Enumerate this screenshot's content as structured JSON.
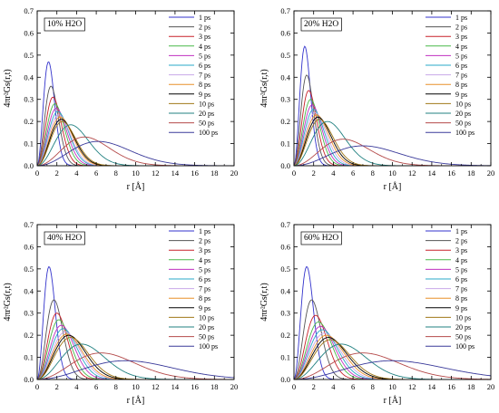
{
  "figure": {
    "series_labels": [
      "1 ps",
      "2 ps",
      "3 ps",
      "4 ps",
      "5 ps",
      "6 ps",
      "7 ps",
      "8 ps",
      "9 ps",
      "10 ps",
      "20 ps",
      "50 ps",
      "100 ps"
    ],
    "series_colors": [
      "#3333cc",
      "#555555",
      "#c8202a",
      "#48b848",
      "#c030c0",
      "#2aa8c8",
      "#c8a8e8",
      "#e89028",
      "#000000",
      "#a07818",
      "#208080",
      "#b44a4a",
      "#3a3a9a"
    ]
  },
  "chart_data": [
    {
      "type": "line",
      "panel_label": "10% H2O",
      "ylabel": "4πr²Gs(r,t)",
      "xlabel": "r [Å]",
      "xlim": [
        0,
        20
      ],
      "ylim": [
        0,
        0.7
      ],
      "x_ticks": [
        0,
        2,
        4,
        6,
        8,
        10,
        12,
        14,
        16,
        18,
        20
      ],
      "y_ticks": [
        0.0,
        0.1,
        0.2,
        0.3,
        0.4,
        0.5,
        0.6,
        0.7
      ],
      "legend_position": "top-right",
      "series": [
        {
          "name": "1 ps",
          "peak_r": 1.15,
          "peak_value": 0.47
        },
        {
          "name": "2 ps",
          "peak_r": 1.4,
          "peak_value": 0.36
        },
        {
          "name": "3 ps",
          "peak_r": 1.6,
          "peak_value": 0.31
        },
        {
          "name": "4 ps",
          "peak_r": 1.8,
          "peak_value": 0.28
        },
        {
          "name": "5 ps",
          "peak_r": 1.95,
          "peak_value": 0.26
        },
        {
          "name": "6 ps",
          "peak_r": 2.1,
          "peak_value": 0.245
        },
        {
          "name": "7 ps",
          "peak_r": 2.2,
          "peak_value": 0.23
        },
        {
          "name": "8 ps",
          "peak_r": 2.35,
          "peak_value": 0.22
        },
        {
          "name": "9 ps",
          "peak_r": 2.45,
          "peak_value": 0.21
        },
        {
          "name": "10 ps",
          "peak_r": 2.55,
          "peak_value": 0.2
        },
        {
          "name": "20 ps",
          "peak_r": 3.4,
          "peak_value": 0.185
        },
        {
          "name": "50 ps",
          "peak_r": 4.8,
          "peak_value": 0.13
        },
        {
          "name": "100 ps",
          "peak_r": 6.2,
          "peak_value": 0.11
        }
      ]
    },
    {
      "type": "line",
      "panel_label": "20% H2O",
      "ylabel": "4πr²Gs(r,t)",
      "xlabel": "r [Å]",
      "xlim": [
        0,
        20
      ],
      "ylim": [
        0,
        0.7
      ],
      "x_ticks": [
        0,
        2,
        4,
        6,
        8,
        10,
        12,
        14,
        16,
        18,
        20
      ],
      "y_ticks": [
        0.0,
        0.1,
        0.2,
        0.3,
        0.4,
        0.5,
        0.6,
        0.7
      ],
      "legend_position": "top-right",
      "series": [
        {
          "name": "1 ps",
          "peak_r": 1.1,
          "peak_value": 0.54
        },
        {
          "name": "2 ps",
          "peak_r": 1.3,
          "peak_value": 0.41
        },
        {
          "name": "3 ps",
          "peak_r": 1.5,
          "peak_value": 0.34
        },
        {
          "name": "4 ps",
          "peak_r": 1.7,
          "peak_value": 0.3
        },
        {
          "name": "5 ps",
          "peak_r": 1.85,
          "peak_value": 0.275
        },
        {
          "name": "6 ps",
          "peak_r": 2.0,
          "peak_value": 0.255
        },
        {
          "name": "7 ps",
          "peak_r": 2.15,
          "peak_value": 0.24
        },
        {
          "name": "8 ps",
          "peak_r": 2.3,
          "peak_value": 0.23
        },
        {
          "name": "9 ps",
          "peak_r": 2.45,
          "peak_value": 0.22
        },
        {
          "name": "10 ps",
          "peak_r": 2.6,
          "peak_value": 0.21
        },
        {
          "name": "20 ps",
          "peak_r": 3.4,
          "peak_value": 0.2
        },
        {
          "name": "50 ps",
          "peak_r": 5.0,
          "peak_value": 0.12
        },
        {
          "name": "100 ps",
          "peak_r": 7.0,
          "peak_value": 0.09
        }
      ]
    },
    {
      "type": "line",
      "panel_label": "40% H2O",
      "ylabel": "4πr²Gs(r,t)",
      "xlabel": "r [Å]",
      "xlim": [
        0,
        20
      ],
      "ylim": [
        0,
        0.7
      ],
      "x_ticks": [
        0,
        2,
        4,
        6,
        8,
        10,
        12,
        14,
        16,
        18,
        20
      ],
      "y_ticks": [
        0.0,
        0.1,
        0.2,
        0.3,
        0.4,
        0.5,
        0.6,
        0.7
      ],
      "legend_position": "top-right",
      "series": [
        {
          "name": "1 ps",
          "peak_r": 1.2,
          "peak_value": 0.51
        },
        {
          "name": "2 ps",
          "peak_r": 1.7,
          "peak_value": 0.36
        },
        {
          "name": "3 ps",
          "peak_r": 2.0,
          "peak_value": 0.3
        },
        {
          "name": "4 ps",
          "peak_r": 2.2,
          "peak_value": 0.27
        },
        {
          "name": "5 ps",
          "peak_r": 2.45,
          "peak_value": 0.245
        },
        {
          "name": "6 ps",
          "peak_r": 2.65,
          "peak_value": 0.23
        },
        {
          "name": "7 ps",
          "peak_r": 2.85,
          "peak_value": 0.215
        },
        {
          "name": "8 ps",
          "peak_r": 3.0,
          "peak_value": 0.205
        },
        {
          "name": "9 ps",
          "peak_r": 3.2,
          "peak_value": 0.2
        },
        {
          "name": "10 ps",
          "peak_r": 3.4,
          "peak_value": 0.19
        },
        {
          "name": "20 ps",
          "peak_r": 4.5,
          "peak_value": 0.16
        },
        {
          "name": "50 ps",
          "peak_r": 6.5,
          "peak_value": 0.12
        },
        {
          "name": "100 ps",
          "peak_r": 9.0,
          "peak_value": 0.085
        }
      ]
    },
    {
      "type": "line",
      "panel_label": "60% H2O",
      "ylabel": "4πr²Gs(r,t)",
      "xlabel": "r [Å]",
      "xlim": [
        0,
        20
      ],
      "ylim": [
        0,
        0.7
      ],
      "x_ticks": [
        0,
        2,
        4,
        6,
        8,
        10,
        12,
        14,
        16,
        18,
        20
      ],
      "y_ticks": [
        0.0,
        0.1,
        0.2,
        0.3,
        0.4,
        0.5,
        0.6,
        0.7
      ],
      "legend_position": "top-right",
      "series": [
        {
          "name": "1 ps",
          "peak_r": 1.3,
          "peak_value": 0.51
        },
        {
          "name": "2 ps",
          "peak_r": 1.8,
          "peak_value": 0.36
        },
        {
          "name": "3 ps",
          "peak_r": 2.2,
          "peak_value": 0.29
        },
        {
          "name": "4 ps",
          "peak_r": 2.5,
          "peak_value": 0.26
        },
        {
          "name": "5 ps",
          "peak_r": 2.7,
          "peak_value": 0.24
        },
        {
          "name": "6 ps",
          "peak_r": 2.9,
          "peak_value": 0.225
        },
        {
          "name": "7 ps",
          "peak_r": 3.1,
          "peak_value": 0.21
        },
        {
          "name": "8 ps",
          "peak_r": 3.3,
          "peak_value": 0.2
        },
        {
          "name": "9 ps",
          "peak_r": 3.5,
          "peak_value": 0.19
        },
        {
          "name": "10 ps",
          "peak_r": 3.7,
          "peak_value": 0.18
        },
        {
          "name": "20 ps",
          "peak_r": 4.8,
          "peak_value": 0.16
        },
        {
          "name": "50 ps",
          "peak_r": 7.0,
          "peak_value": 0.12
        },
        {
          "name": "100 ps",
          "peak_r": 10.0,
          "peak_value": 0.085
        }
      ]
    }
  ]
}
